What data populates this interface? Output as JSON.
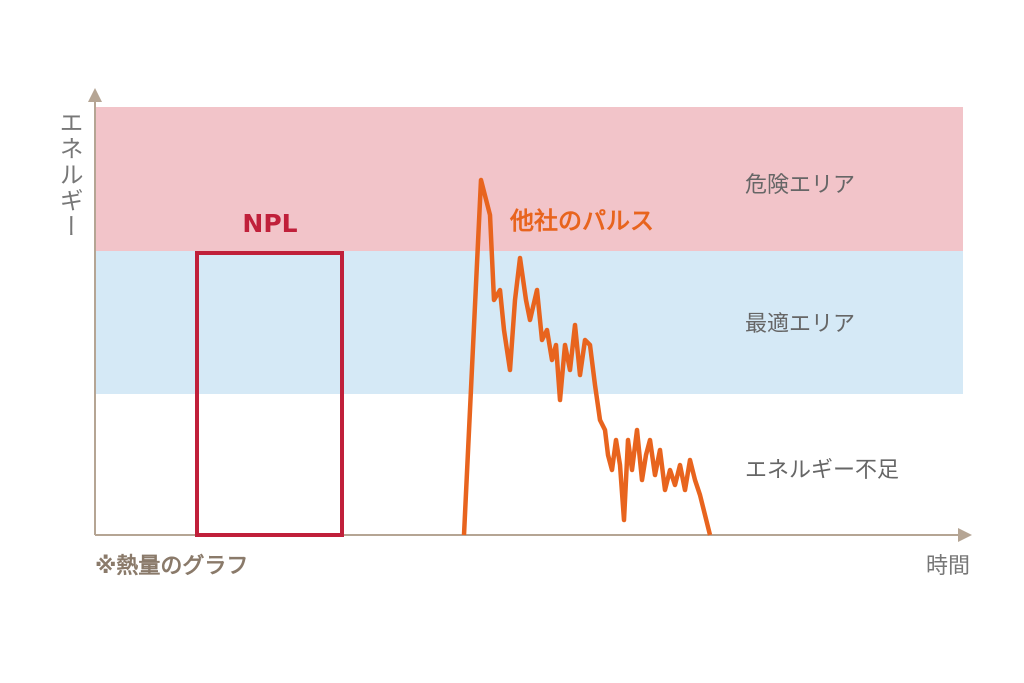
{
  "axes": {
    "y_label": "エネルギー",
    "x_label": "時間",
    "note": "※熱量のグラフ"
  },
  "zones": {
    "danger": "危険エリア",
    "optimal": "最適エリア",
    "shortage": "エネルギー不足"
  },
  "pulses": {
    "npl": "NPL",
    "other": "他社のパルス"
  }
}
